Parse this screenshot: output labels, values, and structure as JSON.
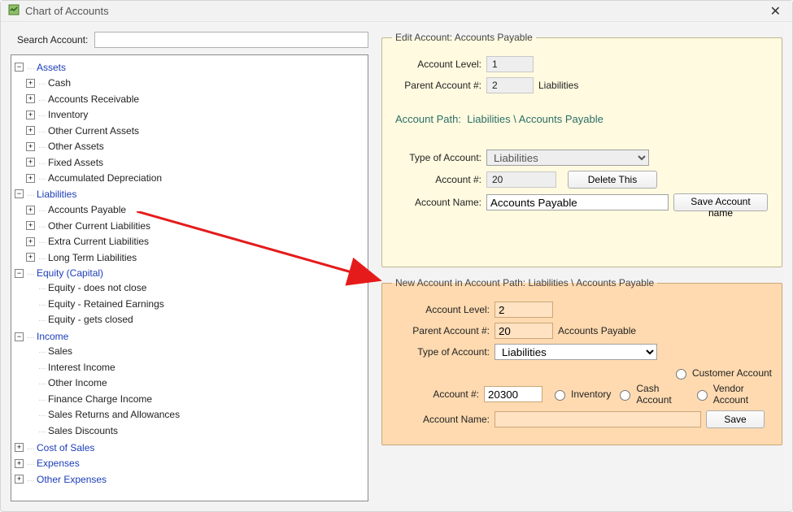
{
  "window": {
    "title": "Chart of Accounts"
  },
  "search": {
    "label": "Search Account:",
    "value": ""
  },
  "tree": {
    "roots": [
      {
        "label": "Assets",
        "blue": true,
        "expanded": true,
        "hasToggle": true,
        "children": [
          {
            "label": "Cash",
            "hasToggle": true
          },
          {
            "label": "Accounts Receivable",
            "hasToggle": true
          },
          {
            "label": "Inventory",
            "hasToggle": true
          },
          {
            "label": "Other Current Assets",
            "hasToggle": true
          },
          {
            "label": "Other Assets",
            "hasToggle": true
          },
          {
            "label": "Fixed Assets",
            "hasToggle": true
          },
          {
            "label": "Accumulated Depreciation",
            "hasToggle": true
          }
        ]
      },
      {
        "label": "Liabilities",
        "blue": true,
        "expanded": true,
        "hasToggle": true,
        "children": [
          {
            "label": "Accounts Payable",
            "hasToggle": true
          },
          {
            "label": "Other Current Liabilities",
            "hasToggle": true
          },
          {
            "label": "Extra Current Liabilities",
            "hasToggle": true
          },
          {
            "label": "Long Term Liabilities",
            "hasToggle": true
          }
        ]
      },
      {
        "label": "Equity (Capital)",
        "blue": true,
        "expanded": true,
        "hasToggle": true,
        "children": [
          {
            "label": "Equity - does not close",
            "hasToggle": false
          },
          {
            "label": "Equity - Retained Earnings",
            "hasToggle": false
          },
          {
            "label": "Equity - gets closed",
            "hasToggle": false
          }
        ]
      },
      {
        "label": "Income",
        "blue": true,
        "expanded": true,
        "hasToggle": true,
        "children": [
          {
            "label": "Sales",
            "hasToggle": false
          },
          {
            "label": "Interest  Income",
            "hasToggle": false
          },
          {
            "label": "Other Income",
            "hasToggle": false
          },
          {
            "label": "Finance Charge Income",
            "hasToggle": false
          },
          {
            "label": "Sales Returns and Allowances",
            "hasToggle": false
          },
          {
            "label": "Sales Discounts",
            "hasToggle": false
          }
        ]
      },
      {
        "label": "Cost of Sales",
        "blue": true,
        "expanded": false,
        "hasToggle": true
      },
      {
        "label": "Expenses",
        "blue": true,
        "expanded": false,
        "hasToggle": true
      },
      {
        "label": "Other Expenses",
        "blue": true,
        "expanded": false,
        "hasToggle": true
      }
    ]
  },
  "arrow": {
    "color": "#e51b1b"
  },
  "edit": {
    "legend_prefix": "Edit Account: ",
    "legend_name": "Accounts Payable",
    "account_level_label": "Account Level:",
    "account_level": "1",
    "parent_num_label": "Parent Account #:",
    "parent_num": "2",
    "parent_name": "Liabilities",
    "path_label": "Account Path:",
    "path_value": "Liabilities \\ Accounts Payable",
    "type_label": "Type of Account:",
    "type_value": "Liabilities",
    "account_num_label": "Account #:",
    "account_num": "20",
    "delete_btn": "Delete This",
    "name_label": "Account Name:",
    "name_value": "Accounts Payable",
    "save_btn": "Save Account name"
  },
  "newacct": {
    "legend_prefix": "New Account in Account Path:  ",
    "legend_path": "Liabilities \\ Accounts Payable",
    "account_level_label": "Account Level:",
    "account_level": "2",
    "parent_num_label": "Parent Account #:",
    "parent_num": "20",
    "parent_name": "Accounts Payable",
    "type_label": "Type of Account:",
    "type_value": "Liabilities",
    "radio_customer": "Customer Account",
    "radio_inventory": "Inventory",
    "radio_cash": "Cash Account",
    "radio_vendor": "Vendor Account",
    "account_num_label": "Account #:",
    "account_num": "20300",
    "name_label": "Account Name:",
    "name_value": "",
    "save_btn": "Save"
  }
}
